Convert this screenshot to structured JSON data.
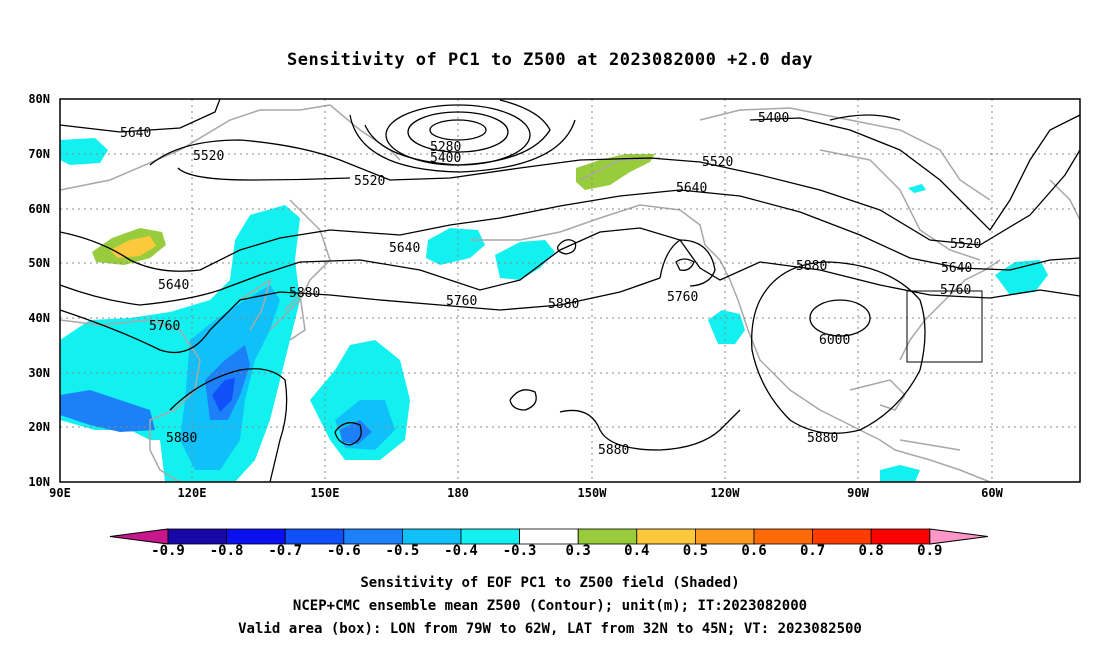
{
  "title": "Sensitivity of PC1 to Z500 at 2023082000 +2.0 day",
  "lat_labels": [
    "80N",
    "70N",
    "60N",
    "50N",
    "40N",
    "30N",
    "20N",
    "10N"
  ],
  "lon_labels": [
    "90E",
    "120E",
    "150E",
    "180",
    "150W",
    "120W",
    "90W",
    "60W"
  ],
  "contour_labels": [
    "5640",
    "5520",
    "5520",
    "5280",
    "5400",
    "5400",
    "5520",
    "5640",
    "5640",
    "5640",
    "5760",
    "5760",
    "5880",
    "5880",
    "5760",
    "5880",
    "6000",
    "5520",
    "5640",
    "5760",
    "5880",
    "5880",
    "5880"
  ],
  "colorbar": {
    "labels": [
      "-0.9",
      "-0.8",
      "-0.7",
      "-0.6",
      "-0.5",
      "-0.4",
      "-0.3",
      "0.3",
      "0.4",
      "0.5",
      "0.6",
      "0.7",
      "0.8",
      "0.9"
    ],
    "colors": [
      "#1808a8",
      "#0a10f0",
      "#1050f8",
      "#1c80f8",
      "#10c0f8",
      "#12f0f0",
      "#ffffff",
      "#98cc3c",
      "#fcc83c",
      "#ff9c20",
      "#ff6a08",
      "#ff3c00",
      "#ff0000"
    ],
    "low_end_color": "#c8168c",
    "high_end_color": "#ff96c8"
  },
  "footer": [
    "Sensitivity of EOF PC1 to Z500 field (Shaded)",
    "NCEP+CMC ensemble mean Z500 (Contour); unit(m); IT:2023082000",
    "Valid area (box): LON from 79W to 62W, LAT from 32N to 45N; VT: 2023082500"
  ]
}
